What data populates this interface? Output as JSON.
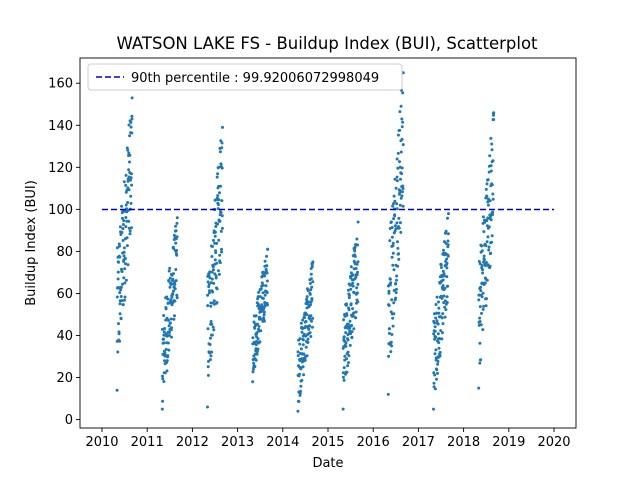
{
  "chart_data": {
    "type": "scatter",
    "title": "WATSON LAKE FS - Buildup Index (BUI), Scatterplot",
    "xlabel": "Date",
    "ylabel": "Buildup Index (BUI)",
    "xlim": [
      2010,
      2020
    ],
    "ylim": [
      0,
      170
    ],
    "x_ticks": [
      "2010",
      "2011",
      "2012",
      "2013",
      "2014",
      "2015",
      "2016",
      "2017",
      "2018",
      "2019",
      "2020"
    ],
    "y_ticks": [
      "0",
      "20",
      "40",
      "60",
      "80",
      "100",
      "120",
      "140",
      "160"
    ],
    "grid": false,
    "legend_position": "top-left",
    "colors": {
      "points": "#1f77b4",
      "reference_line": "#0000cd"
    },
    "reference_line": {
      "label": "90th percentile : 99.92006072998049",
      "value": 99.92006072998049,
      "style": "dashed"
    },
    "season_clusters": [
      {
        "year": 2010,
        "approx_x_range": [
          "2010-05",
          "2010-08"
        ],
        "approx_y_range": [
          14,
          153
        ]
      },
      {
        "year": 2011,
        "approx_x_range": [
          "2011-05",
          "2011-08"
        ],
        "approx_y_range": [
          5,
          96
        ]
      },
      {
        "year": 2012,
        "approx_x_range": [
          "2012-05",
          "2012-08"
        ],
        "approx_y_range": [
          6,
          139
        ]
      },
      {
        "year": 2013,
        "approx_x_range": [
          "2013-05",
          "2013-08"
        ],
        "approx_y_range": [
          18,
          81
        ]
      },
      {
        "year": 2014,
        "approx_x_range": [
          "2014-05",
          "2014-08"
        ],
        "approx_y_range": [
          4,
          75
        ]
      },
      {
        "year": 2015,
        "approx_x_range": [
          "2015-05",
          "2015-08"
        ],
        "approx_y_range": [
          5,
          94
        ]
      },
      {
        "year": 2016,
        "approx_x_range": [
          "2016-05",
          "2016-08"
        ],
        "approx_y_range": [
          12,
          165
        ]
      },
      {
        "year": 2017,
        "approx_x_range": [
          "2017-05",
          "2017-08"
        ],
        "approx_y_range": [
          5,
          98
        ]
      },
      {
        "year": 2018,
        "approx_x_range": [
          "2018-05",
          "2018-08"
        ],
        "approx_y_range": [
          15,
          146
        ]
      }
    ]
  }
}
